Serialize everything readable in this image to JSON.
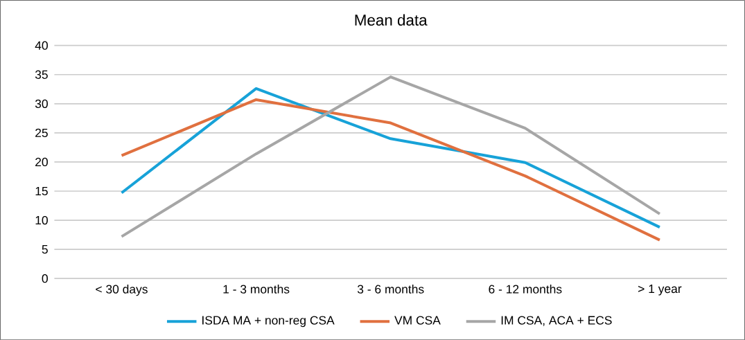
{
  "chart_data": {
    "type": "line",
    "title": "Mean data",
    "categories": [
      "< 30 days",
      "1 - 3 months",
      "3 - 6 months",
      "6 - 12 months",
      "> 1 year"
    ],
    "series": [
      {
        "name": "ISDA MA + non-reg CSA",
        "color": "#17a2d8",
        "values": [
          14.7,
          32.6,
          24.0,
          19.9,
          8.8
        ]
      },
      {
        "name": "VM CSA",
        "color": "#e0703f",
        "values": [
          21.1,
          30.7,
          26.7,
          17.6,
          6.6
        ]
      },
      {
        "name": "IM CSA, ACA + ECS",
        "color": "#a6a6a6",
        "values": [
          7.2,
          21.4,
          34.6,
          25.8,
          11.1
        ]
      }
    ],
    "ylim": [
      0,
      40
    ],
    "yticks": [
      0,
      5,
      10,
      15,
      20,
      25,
      30,
      35,
      40
    ],
    "grid": "y",
    "legend": "bottom",
    "marker": "none",
    "line_style": "solid"
  }
}
